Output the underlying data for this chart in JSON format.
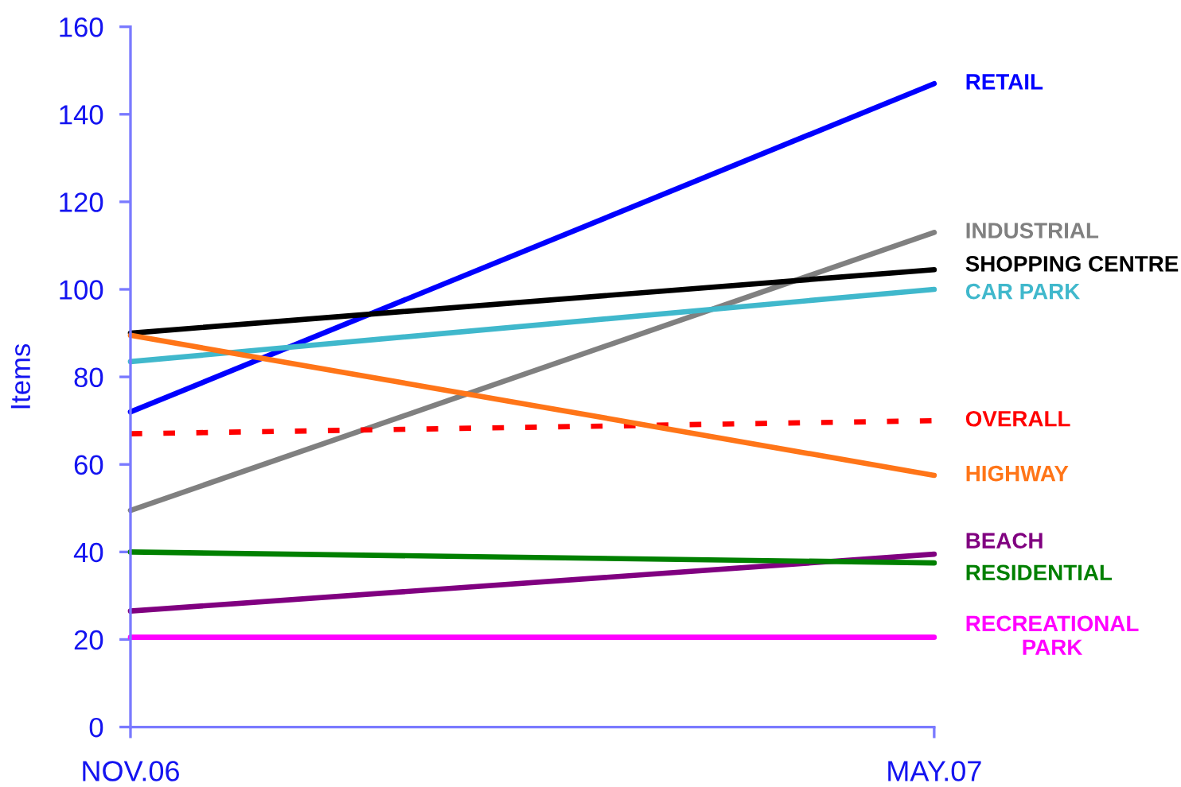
{
  "chart_data": {
    "type": "line",
    "ylabel": "Items",
    "categories": [
      "NOV.06",
      "MAY.07"
    ],
    "ylim": [
      0,
      160
    ],
    "yticks": [
      0,
      20,
      40,
      60,
      80,
      100,
      120,
      140,
      160
    ],
    "line_style": "solid",
    "series": [
      {
        "name": "RETAIL",
        "color": "#0000ff",
        "values": [
          72,
          147
        ]
      },
      {
        "name": "INDUSTRIAL",
        "color": "#808080",
        "values": [
          49.5,
          113
        ]
      },
      {
        "name": "SHOPPING CENTRE",
        "color": "#000000",
        "values": [
          90,
          104.5
        ]
      },
      {
        "name": "CAR PARK",
        "color": "#40b8cc",
        "values": [
          83.5,
          100
        ]
      },
      {
        "name": "OVERALL",
        "color": "#ff0000",
        "values": [
          67,
          70
        ],
        "line_style": "dashed"
      },
      {
        "name": "HIGHWAY",
        "color": "#ff7518",
        "values": [
          89.5,
          57.5
        ]
      },
      {
        "name": "BEACH",
        "color": "#800080",
        "values": [
          26.5,
          39.5
        ]
      },
      {
        "name": "RESIDENTIAL",
        "color": "#008000",
        "values": [
          40,
          37.5
        ]
      },
      {
        "name": "RECREATIONAL\nPARK",
        "color": "#ff00ff",
        "values": [
          20.5,
          20.5
        ]
      }
    ]
  }
}
